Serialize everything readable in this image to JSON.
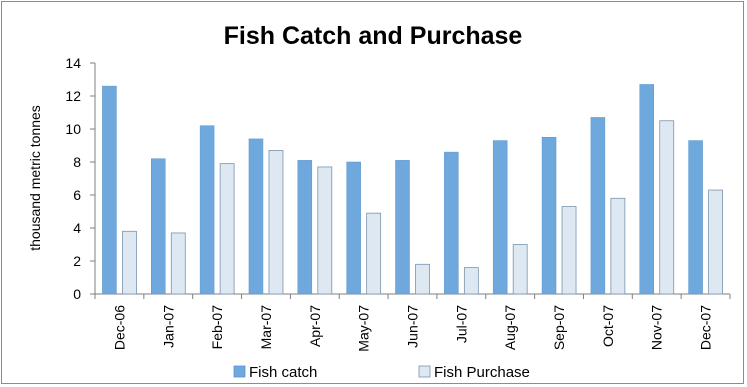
{
  "chart_data": {
    "type": "bar",
    "title": "Fish Catch and Purchase",
    "xlabel": "",
    "ylabel": "thousand metric tonnes",
    "ylim": [
      0,
      14
    ],
    "yticks": [
      "0",
      "2",
      "4",
      "6",
      "8",
      "10",
      "12",
      "14"
    ],
    "categories": [
      "Dec-06",
      "Jan-07",
      "Feb-07",
      "Mar-07",
      "Apr-07",
      "May-07",
      "Jun-07",
      "Jul-07",
      "Aug-07",
      "Sep-07",
      "Oct-07",
      "Nov-07",
      "Dec-07"
    ],
    "series": [
      {
        "name": "Fish catch",
        "color": "#6fa8dc",
        "values": [
          12.6,
          8.2,
          10.2,
          9.4,
          8.1,
          8.0,
          8.1,
          8.6,
          9.3,
          9.5,
          10.7,
          12.7,
          9.3
        ]
      },
      {
        "name": "Fish Purchase",
        "color": "#dde8f3",
        "values": [
          3.8,
          3.7,
          7.9,
          8.7,
          7.7,
          4.9,
          1.8,
          1.6,
          3.0,
          5.3,
          5.8,
          10.5,
          6.3
        ]
      }
    ],
    "grid": false,
    "legend": "bottom"
  }
}
